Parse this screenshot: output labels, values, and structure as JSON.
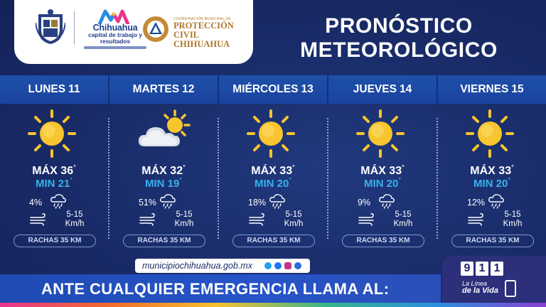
{
  "header": {
    "chihuahua_logo": {
      "title": "Chihuahua",
      "subtitle": "capital de trabajo y resultados"
    },
    "proteccion_civil": {
      "small_text": "COORDINACIÓN MUNICIPAL DE",
      "title_line1": "PROTECCIÓN CIVIL",
      "title_line2": "CHIHUAHUA"
    },
    "title_line1": "PRONÓSTICO",
    "title_line2": "METEOROLÓGICO"
  },
  "days": [
    {
      "name": "LUNES",
      "num": "11",
      "icon": "sun-icon",
      "max_label": "MÁX 36",
      "min_label": "MIN 21",
      "rain_pct": "4%",
      "wind_speed_line1": "5-15",
      "wind_speed_line2": "Km/h",
      "gusts": "RACHAS 35 KM"
    },
    {
      "name": "MARTES",
      "num": "12",
      "icon": "partly-cloudy-icon",
      "max_label": "MÁX 32",
      "min_label": "MIN 19",
      "rain_pct": "51%",
      "wind_speed_line1": "5-15",
      "wind_speed_line2": "Km/h",
      "gusts": "RACHAS 35 KM"
    },
    {
      "name": "MIÉRCOLES",
      "num": "13",
      "icon": "sun-icon",
      "max_label": "MÁX 33",
      "min_label": "MIN 20",
      "rain_pct": "18%",
      "wind_speed_line1": "5-15",
      "wind_speed_line2": "Km/h",
      "gusts": "RACHAS 35 KM"
    },
    {
      "name": "JUEVES",
      "num": "14",
      "icon": "sun-icon",
      "max_label": "MÁX 33",
      "min_label": "MIN 20",
      "rain_pct": "9%",
      "wind_speed_line1": "5-15",
      "wind_speed_line2": "Km/h",
      "gusts": "RACHAS 35 KM"
    },
    {
      "name": "VIERNES",
      "num": "15",
      "icon": "sun-icon",
      "max_label": "MÁX 33",
      "min_label": "MIN 20",
      "rain_pct": "12%",
      "wind_speed_line1": "5-15",
      "wind_speed_line2": "Km/h",
      "gusts": "RACHAS 35 KM"
    }
  ],
  "degree_symbol": "°",
  "footer": {
    "url": "municipiochihuahua.gob.mx",
    "social_icons": [
      "twitter-icon",
      "facebook-icon",
      "instagram-icon",
      "threads-icon"
    ],
    "emergency_text": "ANTE CUALQUIER EMERGENCIA LLAMA AL:",
    "emergency_number": [
      "9",
      "1",
      "1"
    ],
    "linea_line1": "La Línea",
    "linea_line2": "de la Vida"
  },
  "colors": {
    "background": "#192b68",
    "day_bar": "#1e50a8",
    "min_temp": "#36b2ec",
    "sun": "#f7c52e",
    "emergency_box": "#2c2f7a"
  }
}
